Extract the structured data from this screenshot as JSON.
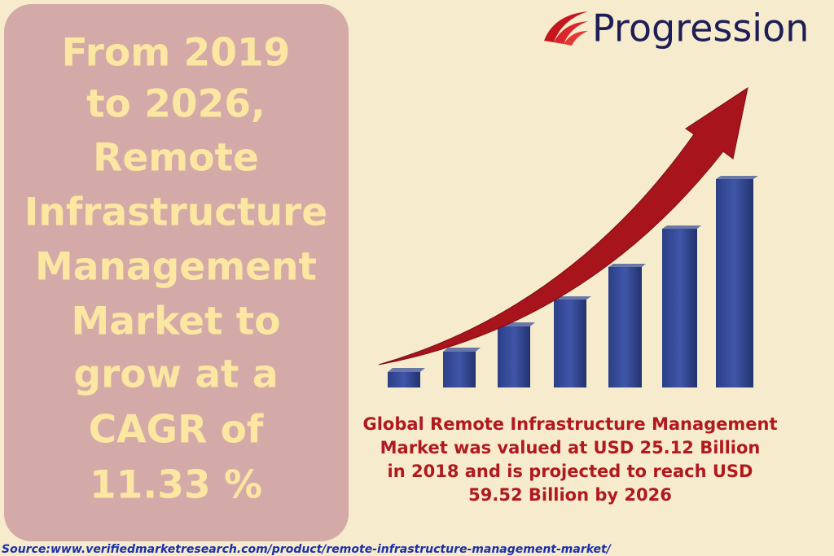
{
  "logo": "Progression",
  "headline": {
    "lines": [
      "From 2019",
      "to 2026,",
      "Remote",
      "Infrastructure",
      "Management",
      "Market to",
      "grow at a",
      "CAGR of",
      "11.33 %"
    ]
  },
  "caption": {
    "lines": [
      "Global Remote Infrastructure Management",
      "Market was valued at USD 25.12 Billion",
      "in 2018 and is projected to reach USD",
      "59.52 Billion by 2026"
    ]
  },
  "source": "Source:www.verifiedmarketresearch.com/product/remote-infrastructure-management-market/"
}
